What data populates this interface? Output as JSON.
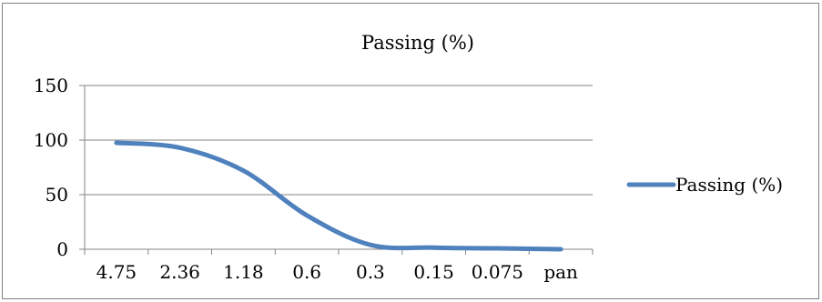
{
  "chart_data": {
    "type": "line",
    "title": "Passing (%)",
    "xlabel": "",
    "ylabel": "",
    "categories": [
      "4.75",
      "2.36",
      "1.18",
      "0.6",
      "0.3",
      "0.15",
      "0.075",
      "pan"
    ],
    "series": [
      {
        "name": "Passing (%)",
        "values": [
          97.5,
          93,
          72,
          31,
          4,
          1.5,
          0.8,
          0
        ]
      }
    ],
    "ylim": [
      0,
      150
    ],
    "yticks": [
      0,
      50,
      100,
      150
    ],
    "y_tick_labels": [
      "0",
      "50",
      "100",
      "150"
    ],
    "grid": true,
    "smooth": true,
    "legend_position": "right",
    "colors": {
      "series": "#4f81bd",
      "grid": "#868686",
      "axis": "#868686",
      "border": "#7f7f7f"
    }
  }
}
